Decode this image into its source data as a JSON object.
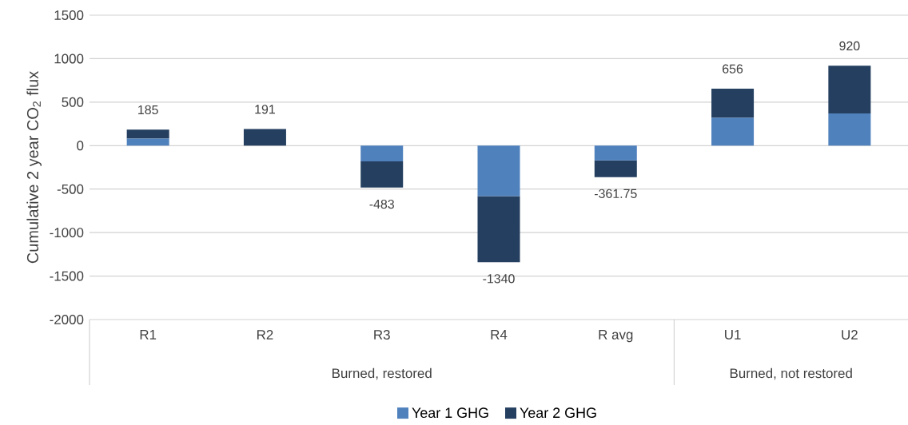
{
  "chart_data": {
    "type": "bar",
    "stacked": true,
    "ylabel": "Cumulative 2 year CO$_{2}$ flux",
    "categories": [
      "R1",
      "R2",
      "R3",
      "R4",
      "R avg",
      "U1",
      "U2"
    ],
    "series": [
      {
        "name": "Year 1 GHG",
        "color": "#4f81bd",
        "values": [
          80,
          0,
          -180,
          -580,
          -170,
          320,
          370
        ]
      },
      {
        "name": "Year 2 GHG",
        "color": "#243f60",
        "values": [
          105,
          191,
          -303,
          -760,
          -191.75,
          336,
          550
        ]
      }
    ],
    "totals": [
      "185",
      "191",
      "-483",
      "-1340",
      "-361.75",
      "656",
      "920"
    ],
    "annotations": [
      "Burned, restored",
      "Burned, not restored"
    ],
    "ylim": [
      -2000,
      1500
    ],
    "yticks": [
      -2000,
      -1500,
      -1000,
      -500,
      0,
      500,
      1000,
      1500
    ],
    "grid": "y",
    "legend": "bottom"
  }
}
